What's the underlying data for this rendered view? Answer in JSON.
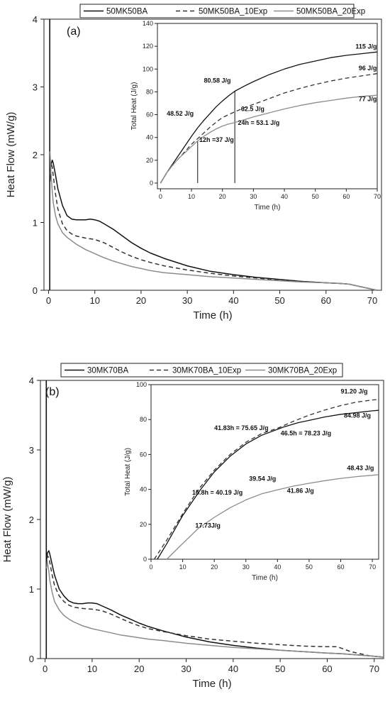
{
  "chart_data": [
    {
      "type": "line",
      "panel_label": "(a)",
      "xlabel": "Time (h)",
      "ylabel": "Heat Flow (mW/g)",
      "xlim": [
        -1,
        72
      ],
      "ylim": [
        0,
        4
      ],
      "xticks": [
        0,
        10,
        20,
        30,
        40,
        50,
        60,
        70
      ],
      "yticks": [
        0,
        1,
        2,
        3,
        4
      ],
      "legend": "top",
      "series": [
        {
          "name": "50MK50BA",
          "style": "solid",
          "color": "#111111",
          "x": [
            0.3,
            0.5,
            0.8,
            1,
            1.5,
            2,
            3,
            4,
            5,
            6,
            7,
            8,
            9,
            10,
            11,
            12,
            14,
            16,
            18,
            20,
            22,
            25,
            30,
            35,
            40,
            45,
            50,
            55,
            60,
            63,
            65,
            67,
            69,
            71
          ],
          "y": [
            1.6,
            1.85,
            1.92,
            1.88,
            1.7,
            1.5,
            1.25,
            1.1,
            1.05,
            1.04,
            1.04,
            1.04,
            1.05,
            1.04,
            1.02,
            0.98,
            0.9,
            0.8,
            0.7,
            0.62,
            0.55,
            0.47,
            0.36,
            0.28,
            0.23,
            0.19,
            0.16,
            0.13,
            0.11,
            0.1,
            0.09,
            0.06,
            0.03,
            0.0
          ]
        },
        {
          "name": "50MK50BA_10Exp",
          "style": "dashed",
          "color": "#333333",
          "x": [
            0.3,
            0.5,
            0.8,
            1,
            1.5,
            2,
            3,
            4,
            5,
            6,
            8,
            10,
            12,
            14,
            16,
            18,
            20,
            22,
            25,
            30,
            35,
            40,
            45,
            50,
            55,
            60,
            63,
            65,
            67,
            69,
            71
          ],
          "y": [
            1.7,
            1.88,
            1.82,
            1.7,
            1.42,
            1.2,
            0.98,
            0.88,
            0.83,
            0.8,
            0.77,
            0.75,
            0.7,
            0.63,
            0.56,
            0.5,
            0.45,
            0.41,
            0.36,
            0.3,
            0.25,
            0.21,
            0.18,
            0.15,
            0.13,
            0.11,
            0.1,
            0.09,
            0.06,
            0.03,
            0.0
          ]
        },
        {
          "name": "50MK50BA_20Exp",
          "style": "solid",
          "color": "#8c8c8c",
          "x": [
            0.3,
            0.5,
            0.8,
            1,
            1.5,
            2,
            3,
            4,
            5,
            6,
            8,
            10,
            12,
            14,
            16,
            18,
            20,
            22,
            25,
            30,
            35,
            40,
            45,
            50,
            55,
            60,
            63,
            65,
            67,
            69,
            71
          ],
          "y": [
            2.05,
            1.75,
            1.45,
            1.3,
            1.1,
            0.98,
            0.85,
            0.78,
            0.73,
            0.68,
            0.6,
            0.54,
            0.48,
            0.43,
            0.39,
            0.35,
            0.32,
            0.29,
            0.26,
            0.23,
            0.2,
            0.18,
            0.16,
            0.14,
            0.12,
            0.11,
            0.1,
            0.09,
            0.06,
            0.03,
            0.0
          ]
        }
      ],
      "inset": {
        "xlabel": "Time (h)",
        "ylabel": "Total Heat (J/g)",
        "xlim": [
          -1,
          70
        ],
        "ylim": [
          -5,
          140
        ],
        "xticks": [
          0,
          10,
          20,
          30,
          40,
          50,
          60,
          70
        ],
        "yticks": [
          0,
          20,
          40,
          60,
          80,
          100,
          120,
          140
        ],
        "series": [
          {
            "name": "50MK50BA",
            "style": "solid",
            "color": "#111111",
            "x": [
              0,
              2,
              4,
              6,
              8,
              10,
              12,
              14,
              16,
              18,
              20,
              22,
              24,
              27,
              30,
              35,
              40,
              45,
              50,
              55,
              60,
              65,
              70
            ],
            "y": [
              0,
              9,
              17,
              25,
              33,
              41,
              48.52,
              55,
              61,
              67,
              72,
              76.5,
              80.58,
              85,
              89,
              95,
              100,
              104,
              107,
              110,
              112,
              113.5,
              115
            ]
          },
          {
            "name": "50MK50BA_10Exp",
            "style": "dashed",
            "color": "#333333",
            "x": [
              0,
              2,
              4,
              6,
              8,
              10,
              12,
              14,
              16,
              18,
              20,
              22,
              24,
              27,
              30,
              35,
              40,
              45,
              50,
              55,
              60,
              65,
              70
            ],
            "y": [
              0,
              9,
              16,
              22,
              28,
              34,
              39,
              44,
              49,
              53.5,
              57.5,
              60,
              62.5,
              66,
              69,
              74,
              79,
              83,
              86.5,
              89.5,
              92,
              94,
              96
            ]
          },
          {
            "name": "50MK50BA_20Exp",
            "style": "solid",
            "color": "#8c8c8c",
            "x": [
              0,
              2,
              4,
              6,
              8,
              10,
              12,
              14,
              16,
              18,
              20,
              22,
              24,
              27,
              30,
              35,
              40,
              45,
              50,
              55,
              60,
              65,
              70
            ],
            "y": [
              0,
              9,
              16,
              22,
              27,
              32,
              37,
              41,
              44.5,
              47.5,
              50,
              51.8,
              53.1,
              55.5,
              58,
              61.5,
              65,
              68,
              70.5,
              72.5,
              74.5,
              76,
              77
            ]
          }
        ],
        "vlines": [
          {
            "x": 12,
            "y": 37
          },
          {
            "x": 24,
            "y": 80.58
          }
        ],
        "annotations": [
          {
            "text": "115 J/g",
            "x": 63,
            "y": 118
          },
          {
            "text": "96 J/g",
            "x": 64,
            "y": 99
          },
          {
            "text": "77 J/g",
            "x": 64,
            "y": 72
          },
          {
            "text": "80.58 J/g",
            "x": 14,
            "y": 88
          },
          {
            "text": "48.52 J/g",
            "x": 2,
            "y": 59
          },
          {
            "text": "62.5 J/g",
            "x": 26,
            "y": 63
          },
          {
            "text": "24h = 53.1 J/g",
            "x": 25,
            "y": 51
          },
          {
            "text": "12h =37 J/g",
            "x": 12.5,
            "y": 36
          }
        ]
      }
    },
    {
      "type": "line",
      "panel_label": "(b)",
      "xlabel": "Time (h)",
      "ylabel": "Heat Flow (mW/g)",
      "xlim": [
        -1,
        72
      ],
      "ylim": [
        0,
        4
      ],
      "xticks": [
        0,
        10,
        20,
        30,
        40,
        50,
        60,
        70
      ],
      "yticks": [
        0,
        1,
        2,
        3,
        4
      ],
      "legend": "top",
      "series": [
        {
          "name": "30MK70BA",
          "style": "solid",
          "color": "#111111",
          "x": [
            0.3,
            0.5,
            0.8,
            1,
            1.5,
            2,
            3,
            4,
            5,
            6,
            7,
            8,
            9,
            10,
            11,
            12,
            14,
            16,
            18,
            20,
            22,
            25,
            30,
            35,
            40,
            45,
            50,
            55,
            60,
            63,
            65,
            67,
            69,
            72
          ],
          "y": [
            1.4,
            1.52,
            1.55,
            1.5,
            1.35,
            1.2,
            1.0,
            0.9,
            0.83,
            0.8,
            0.79,
            0.79,
            0.8,
            0.8,
            0.79,
            0.76,
            0.7,
            0.63,
            0.57,
            0.51,
            0.46,
            0.4,
            0.31,
            0.24,
            0.19,
            0.15,
            0.12,
            0.1,
            0.08,
            0.07,
            0.06,
            0.05,
            0.04,
            0.02
          ]
        },
        {
          "name": "30MK70BA_10Exp",
          "style": "dashed",
          "color": "#333333",
          "x": [
            0.3,
            0.5,
            0.8,
            1,
            1.5,
            2,
            3,
            4,
            5,
            6,
            8,
            10,
            12,
            14,
            16,
            18,
            20,
            22,
            25,
            30,
            35,
            40,
            45,
            50,
            55,
            60,
            62,
            63,
            65,
            67,
            69,
            72
          ],
          "y": [
            1.35,
            1.48,
            1.45,
            1.38,
            1.2,
            1.05,
            0.9,
            0.82,
            0.77,
            0.74,
            0.72,
            0.71,
            0.69,
            0.64,
            0.58,
            0.52,
            0.47,
            0.43,
            0.39,
            0.33,
            0.28,
            0.25,
            0.22,
            0.2,
            0.18,
            0.17,
            0.17,
            0.15,
            0.1,
            0.07,
            0.04,
            0.02
          ]
        },
        {
          "name": "30MK70BA_20Exp",
          "style": "solid",
          "color": "#8c8c8c",
          "x": [
            0.3,
            0.5,
            0.8,
            1,
            1.5,
            2,
            3,
            4,
            5,
            6,
            8,
            10,
            12,
            14,
            16,
            18,
            20,
            22,
            25,
            30,
            35,
            40,
            45,
            50,
            55,
            60,
            63,
            65,
            67,
            69,
            72
          ],
          "y": [
            1.3,
            1.38,
            1.25,
            1.12,
            0.95,
            0.82,
            0.7,
            0.62,
            0.57,
            0.53,
            0.47,
            0.43,
            0.4,
            0.37,
            0.34,
            0.32,
            0.3,
            0.28,
            0.26,
            0.22,
            0.19,
            0.16,
            0.14,
            0.12,
            0.1,
            0.08,
            0.07,
            0.06,
            0.05,
            0.04,
            0.02
          ]
        }
      ],
      "inset": {
        "xlabel": "Time (h)",
        "ylabel": "Total Heat (J/g)",
        "xlim": [
          0,
          72
        ],
        "ylim": [
          0,
          100
        ],
        "xticks": [
          0,
          10,
          20,
          30,
          40,
          50,
          60,
          70
        ],
        "yticks": [
          0,
          20,
          40,
          60,
          80,
          100
        ],
        "series": [
          {
            "name": "30MK70BA",
            "style": "solid",
            "color": "#111111",
            "x": [
              2,
              5,
              10,
              15.8,
              20,
              25,
              30,
              35,
              41.83,
              46.5,
              50,
              55,
              60,
              65,
              70,
              72
            ],
            "y": [
              0,
              9,
              25,
              40.19,
              50,
              59,
              66,
              71,
              75.65,
              78.23,
              79.5,
              81.5,
              83,
              84,
              84.98,
              85.3
            ]
          },
          {
            "name": "30MK70BA_10Exp",
            "style": "dashed",
            "color": "#333333",
            "x": [
              1,
              5,
              10,
              15,
              20,
              25,
              30,
              35,
              40,
              45,
              50,
              55,
              60,
              65,
              70,
              72
            ],
            "y": [
              0,
              11,
              26,
              40,
              51,
              60,
              67,
              72,
              75,
              79,
              82.5,
              85.5,
              88,
              90,
              91.2,
              91.5
            ]
          },
          {
            "name": "30MK70BA_20Exp",
            "style": "solid",
            "color": "#8c8c8c",
            "x": [
              5,
              10,
              15,
              20,
              25,
              30,
              35,
              39.54,
              45,
              50,
              55,
              60,
              65,
              70,
              72
            ],
            "y": [
              0,
              9,
              17.73,
              24,
              29.5,
              34,
              37.5,
              39.54,
              41.86,
              43.5,
              45,
              46.3,
              47.3,
              48.1,
              48.43
            ]
          }
        ],
        "annotations": [
          {
            "text": "91.20 J/g",
            "x": 60,
            "y": 95
          },
          {
            "text": "84.98 J/g",
            "x": 61,
            "y": 81
          },
          {
            "text": "41.83h = 75.65 J/g",
            "x": 20,
            "y": 74
          },
          {
            "text": "46.5h = 78.23 J/g",
            "x": 41,
            "y": 71
          },
          {
            "text": "15.8h = 40.19 J/g",
            "x": 13,
            "y": 37
          },
          {
            "text": "39.54 J/g",
            "x": 31,
            "y": 45
          },
          {
            "text": "41.86 J/g",
            "x": 43,
            "y": 38
          },
          {
            "text": "48.43 J/g",
            "x": 62,
            "y": 51
          },
          {
            "text": "17.73J/g",
            "x": 14,
            "y": 18
          }
        ]
      }
    }
  ]
}
